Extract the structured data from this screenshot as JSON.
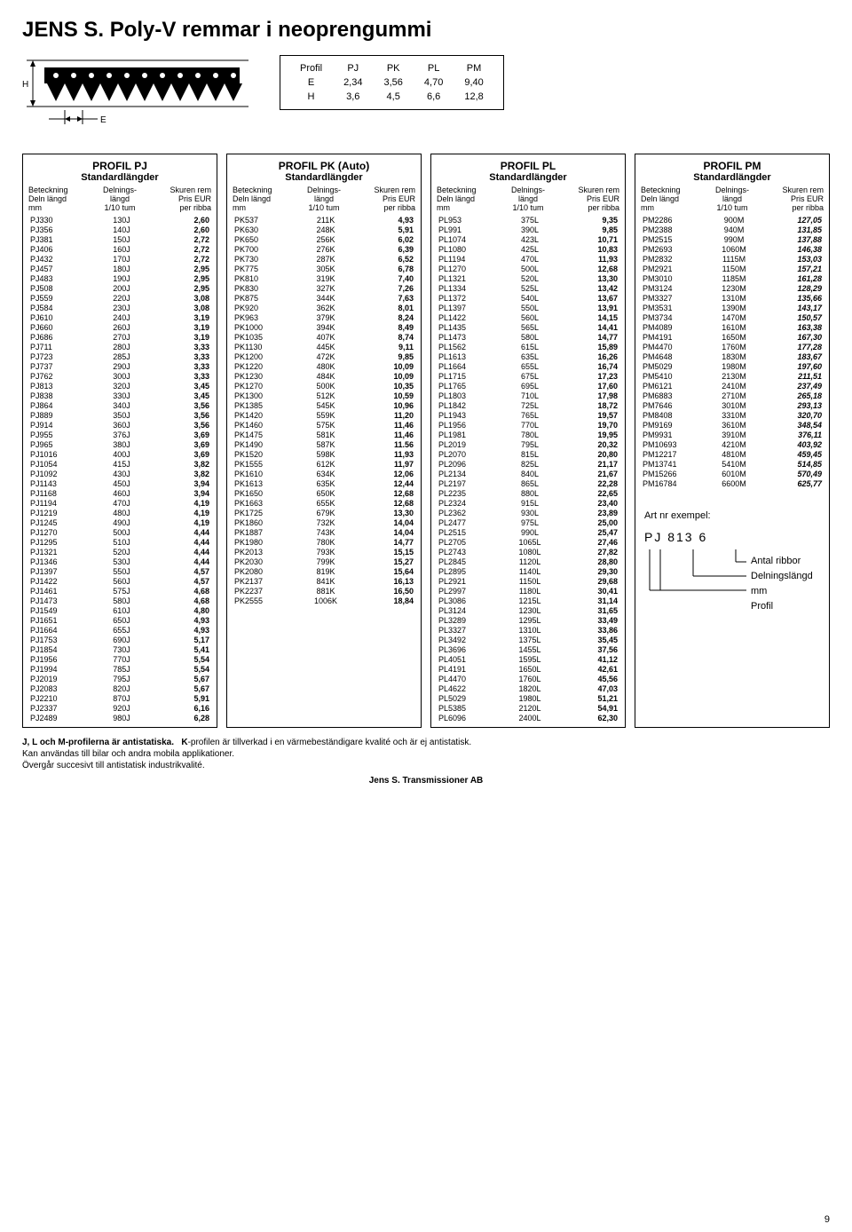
{
  "title": "JENS S. Poly-V remmar i neoprengummi",
  "dims": {
    "header": [
      "Profil",
      "PJ",
      "PK",
      "PL",
      "PM"
    ],
    "rows": [
      [
        "E",
        "2,34",
        "3,56",
        "4,70",
        "9,40"
      ],
      [
        "H",
        "3,6",
        "4,5",
        "6,6",
        "12,8"
      ]
    ]
  },
  "cols_header": {
    "c1a": "Beteckning",
    "c1b": "Deln längd",
    "c1c": "mm",
    "c2a": "Delnings-",
    "c2b": "längd",
    "c2c": "1/10 tum",
    "c3a": "Skuren rem",
    "c3b": "Pris EUR",
    "c3c": "per ribba"
  },
  "profiles": {
    "pj": {
      "title": "PROFIL PJ",
      "sub": "Standardlängder",
      "rows": [
        [
          "PJ330",
          "130J",
          "2,60"
        ],
        [
          "PJ356",
          "140J",
          "2,60"
        ],
        [
          "PJ381",
          "150J",
          "2,72"
        ],
        [
          "PJ406",
          "160J",
          "2,72"
        ],
        [
          "PJ432",
          "170J",
          "2,72"
        ],
        [
          "PJ457",
          "180J",
          "2,95"
        ],
        [
          "PJ483",
          "190J",
          "2,95"
        ],
        [
          "PJ508",
          "200J",
          "2,95"
        ],
        [
          "PJ559",
          "220J",
          "3,08"
        ],
        [
          "PJ584",
          "230J",
          "3,08"
        ],
        [
          "PJ610",
          "240J",
          "3,19"
        ],
        [
          "PJ660",
          "260J",
          "3,19"
        ],
        [
          "PJ686",
          "270J",
          "3,19"
        ],
        [
          "PJ711",
          "280J",
          "3,33"
        ],
        [
          "PJ723",
          "285J",
          "3,33"
        ],
        [
          "PJ737",
          "290J",
          "3,33"
        ],
        [
          "PJ762",
          "300J",
          "3,33"
        ],
        [
          "PJ813",
          "320J",
          "3,45"
        ],
        [
          "PJ838",
          "330J",
          "3,45"
        ],
        [
          "PJ864",
          "340J",
          "3,56"
        ],
        [
          "PJ889",
          "350J",
          "3,56"
        ],
        [
          "PJ914",
          "360J",
          "3,56"
        ],
        [
          "PJ955",
          "376J",
          "3,69"
        ],
        [
          "PJ965",
          "380J",
          "3,69"
        ],
        [
          "PJ1016",
          "400J",
          "3,69"
        ],
        [
          "PJ1054",
          "415J",
          "3,82"
        ],
        [
          "PJ1092",
          "430J",
          "3,82"
        ],
        [
          "PJ1143",
          "450J",
          "3,94"
        ],
        [
          "PJ1168",
          "460J",
          "3,94"
        ],
        [
          "PJ1194",
          "470J",
          "4,19"
        ],
        [
          "PJ1219",
          "480J",
          "4,19"
        ],
        [
          "PJ1245",
          "490J",
          "4,19"
        ],
        [
          "PJ1270",
          "500J",
          "4,44"
        ],
        [
          "PJ1295",
          "510J",
          "4,44"
        ],
        [
          "PJ1321",
          "520J",
          "4,44"
        ],
        [
          "PJ1346",
          "530J",
          "4,44"
        ],
        [
          "PJ1397",
          "550J",
          "4,57"
        ],
        [
          "PJ1422",
          "560J",
          "4,57"
        ],
        [
          "PJ1461",
          "575J",
          "4,68"
        ],
        [
          "PJ1473",
          "580J",
          "4,68"
        ],
        [
          "PJ1549",
          "610J",
          "4,80"
        ],
        [
          "PJ1651",
          "650J",
          "4,93"
        ],
        [
          "PJ1664",
          "655J",
          "4,93"
        ],
        [
          "PJ1753",
          "690J",
          "5,17"
        ],
        [
          "PJ1854",
          "730J",
          "5,41"
        ],
        [
          "PJ1956",
          "770J",
          "5,54"
        ],
        [
          "PJ1994",
          "785J",
          "5,54"
        ],
        [
          "PJ2019",
          "795J",
          "5,67"
        ],
        [
          "PJ2083",
          "820J",
          "5,67"
        ],
        [
          "PJ2210",
          "870J",
          "5,91"
        ],
        [
          "PJ2337",
          "920J",
          "6,16"
        ],
        [
          "PJ2489",
          "980J",
          "6,28"
        ]
      ]
    },
    "pk": {
      "title": "PROFIL PK (Auto)",
      "sub": "Standardlängder",
      "rows": [
        [
          "PK537",
          "211K",
          "4,93"
        ],
        [
          "PK630",
          "248K",
          "5,91"
        ],
        [
          "PK650",
          "256K",
          "6,02"
        ],
        [
          "PK700",
          "276K",
          "6,39"
        ],
        [
          "PK730",
          "287K",
          "6,52"
        ],
        [
          "PK775",
          "305K",
          "6,78"
        ],
        [
          "PK810",
          "319K",
          "7,40"
        ],
        [
          "PK830",
          "327K",
          "7,26"
        ],
        [
          "PK875",
          "344K",
          "7,63"
        ],
        [
          "PK920",
          "362K",
          "8,01"
        ],
        [
          "PK963",
          "379K",
          "8,24"
        ],
        [
          "PK1000",
          "394K",
          "8,49"
        ],
        [
          "PK1035",
          "407K",
          "8,74"
        ],
        [
          "PK1130",
          "445K",
          "9,11"
        ],
        [
          "PK1200",
          "472K",
          "9,85"
        ],
        [
          "PK1220",
          "480K",
          "10,09"
        ],
        [
          "PK1230",
          "484K",
          "10,09"
        ],
        [
          "PK1270",
          "500K",
          "10,35"
        ],
        [
          "PK1300",
          "512K",
          "10,59"
        ],
        [
          "PK1385",
          "545K",
          "10,96"
        ],
        [
          "PK1420",
          "559K",
          "11,20"
        ],
        [
          "PK1460",
          "575K",
          "11,46"
        ],
        [
          "PK1475",
          "581K",
          "11,46"
        ],
        [
          "PK1490",
          "587K",
          "11.56"
        ],
        [
          "PK1520",
          "598K",
          "11,93"
        ],
        [
          "PK1555",
          "612K",
          "11,97"
        ],
        [
          "PK1610",
          "634K",
          "12,06"
        ],
        [
          "PK1613",
          "635K",
          "12,44"
        ],
        [
          "PK1650",
          "650K",
          "12,68"
        ],
        [
          "PK1663",
          "655K",
          "12,68"
        ],
        [
          "PK1725",
          "679K",
          "13,30"
        ],
        [
          "PK1860",
          "732K",
          "14,04"
        ],
        [
          "PK1887",
          "743K",
          "14,04"
        ],
        [
          "PK1980",
          "780K",
          "14,77"
        ],
        [
          "PK2013",
          "793K",
          "15,15"
        ],
        [
          "PK2030",
          "799K",
          "15,27"
        ],
        [
          "PK2080",
          "819K",
          "15,64"
        ],
        [
          "PK2137",
          "841K",
          "16,13"
        ],
        [
          "PK2237",
          "881K",
          "16,50"
        ],
        [
          "PK2555",
          "1006K",
          "18,84"
        ]
      ]
    },
    "pl": {
      "title": "PROFIL PL",
      "sub": "Standardlängder",
      "rows": [
        [
          "PL953",
          "375L",
          "9,35"
        ],
        [
          "PL991",
          "390L",
          "9,85"
        ],
        [
          "PL1074",
          "423L",
          "10,71"
        ],
        [
          "PL1080",
          "425L",
          "10,83"
        ],
        [
          "PL1194",
          "470L",
          "11,93"
        ],
        [
          "PL1270",
          "500L",
          "12,68"
        ],
        [
          "PL1321",
          "520L",
          "13,30"
        ],
        [
          "PL1334",
          "525L",
          "13,42"
        ],
        [
          "PL1372",
          "540L",
          "13,67"
        ],
        [
          "PL1397",
          "550L",
          "13,91"
        ],
        [
          "PL1422",
          "560L",
          "14,15"
        ],
        [
          "PL1435",
          "565L",
          "14,41"
        ],
        [
          "PL1473",
          "580L",
          "14,77"
        ],
        [
          "PL1562",
          "615L",
          "15,89"
        ],
        [
          "PL1613",
          "635L",
          "16,26"
        ],
        [
          "PL1664",
          "655L",
          "16,74"
        ],
        [
          "PL1715",
          "675L",
          "17,23"
        ],
        [
          "PL1765",
          "695L",
          "17,60"
        ],
        [
          "PL1803",
          "710L",
          "17,98"
        ],
        [
          "PL1842",
          "725L",
          "18,72"
        ],
        [
          "PL1943",
          "765L",
          "19,57"
        ],
        [
          "PL1956",
          "770L",
          "19,70"
        ],
        [
          "PL1981",
          "780L",
          "19,95"
        ],
        [
          "PL2019",
          "795L",
          "20,32"
        ],
        [
          "PL2070",
          "815L",
          "20,80"
        ],
        [
          "PL2096",
          "825L",
          "21,17"
        ],
        [
          "PL2134",
          "840L",
          "21,67"
        ],
        [
          "PL2197",
          "865L",
          "22,28"
        ],
        [
          "PL2235",
          "880L",
          "22,65"
        ],
        [
          "PL2324",
          "915L",
          "23,40"
        ],
        [
          "PL2362",
          "930L",
          "23,89"
        ],
        [
          "PL2477",
          "975L",
          "25,00"
        ],
        [
          "PL2515",
          "990L",
          "25,47"
        ],
        [
          "PL2705",
          "1065L",
          "27,46"
        ],
        [
          "PL2743",
          "1080L",
          "27,82"
        ],
        [
          "PL2845",
          "1120L",
          "28,80"
        ],
        [
          "PL2895",
          "1140L",
          "29,30"
        ],
        [
          "PL2921",
          "1150L",
          "29,68"
        ],
        [
          "PL2997",
          "1180L",
          "30,41"
        ],
        [
          "PL3086",
          "1215L",
          "31,14"
        ],
        [
          "PL3124",
          "1230L",
          "31,65"
        ],
        [
          "PL3289",
          "1295L",
          "33,49"
        ],
        [
          "PL3327",
          "1310L",
          "33,86"
        ],
        [
          "PL3492",
          "1375L",
          "35,45"
        ],
        [
          "PL3696",
          "1455L",
          "37,56"
        ],
        [
          "PL4051",
          "1595L",
          "41,12"
        ],
        [
          "PL4191",
          "1650L",
          "42,61"
        ],
        [
          "PL4470",
          "1760L",
          "45,56"
        ],
        [
          "PL4622",
          "1820L",
          "47,03"
        ],
        [
          "PL5029",
          "1980L",
          "51,21"
        ],
        [
          "PL5385",
          "2120L",
          "54,91"
        ],
        [
          "PL6096",
          "2400L",
          "62,30"
        ]
      ]
    },
    "pm": {
      "title": "PROFIL PM",
      "sub": "Standardlängder",
      "rows": [
        [
          "PM2286",
          "900M",
          "127,05"
        ],
        [
          "PM2388",
          "940M",
          "131,85"
        ],
        [
          "PM2515",
          "990M",
          "137,88"
        ],
        [
          "PM2693",
          "1060M",
          "146,38"
        ],
        [
          "PM2832",
          "1115M",
          "153,03"
        ],
        [
          "PM2921",
          "1150M",
          "157,21"
        ],
        [
          "PM3010",
          "1185M",
          "161,28"
        ],
        [
          "PM3124",
          "1230M",
          "128,29"
        ],
        [
          "PM3327",
          "1310M",
          "135,66"
        ],
        [
          "PM3531",
          "1390M",
          "143,17"
        ],
        [
          "PM3734",
          "1470M",
          "150,57"
        ],
        [
          "PM4089",
          "1610M",
          "163,38"
        ],
        [
          "PM4191",
          "1650M",
          "167,30"
        ],
        [
          "PM4470",
          "1760M",
          "177,28"
        ],
        [
          "PM4648",
          "1830M",
          "183,67"
        ],
        [
          "PM5029",
          "1980M",
          "197,60"
        ],
        [
          "PM5410",
          "2130M",
          "211,51"
        ],
        [
          "PM6121",
          "2410M",
          "237,49"
        ],
        [
          "PM6883",
          "2710M",
          "265,18"
        ],
        [
          "PM7646",
          "3010M",
          "293,13"
        ],
        [
          "PM8408",
          "3310M",
          "320,70"
        ],
        [
          "PM9169",
          "3610M",
          "348,54"
        ],
        [
          "PM9931",
          "3910M",
          "376,11"
        ],
        [
          "PM10693",
          "4210M",
          "403,92"
        ],
        [
          "PM12217",
          "4810M",
          "459,45"
        ],
        [
          "PM13741",
          "5410M",
          "514,85"
        ],
        [
          "PM15266",
          "6010M",
          "570,49"
        ],
        [
          "PM16784",
          "6600M",
          "625,77"
        ]
      ]
    }
  },
  "example": {
    "label": "Art nr exempel:",
    "code": "PJ   813   6",
    "l1": "Antal ribbor",
    "l2": "Delningslängd mm",
    "l3": "Profil"
  },
  "footer": {
    "line1a": "J, L och M-profilerna är antistatiska.",
    "line1b": "K-profilen är tillverkad i en värmebeständigare kvalité och är ej antistatisk.",
    "line2": "Kan användas till bilar och andra mobila applikationer.",
    "line3": "Övergår succesivt till antistatisk industrikvalité.",
    "company": "Jens S. Transmissioner AB",
    "page": "9"
  }
}
